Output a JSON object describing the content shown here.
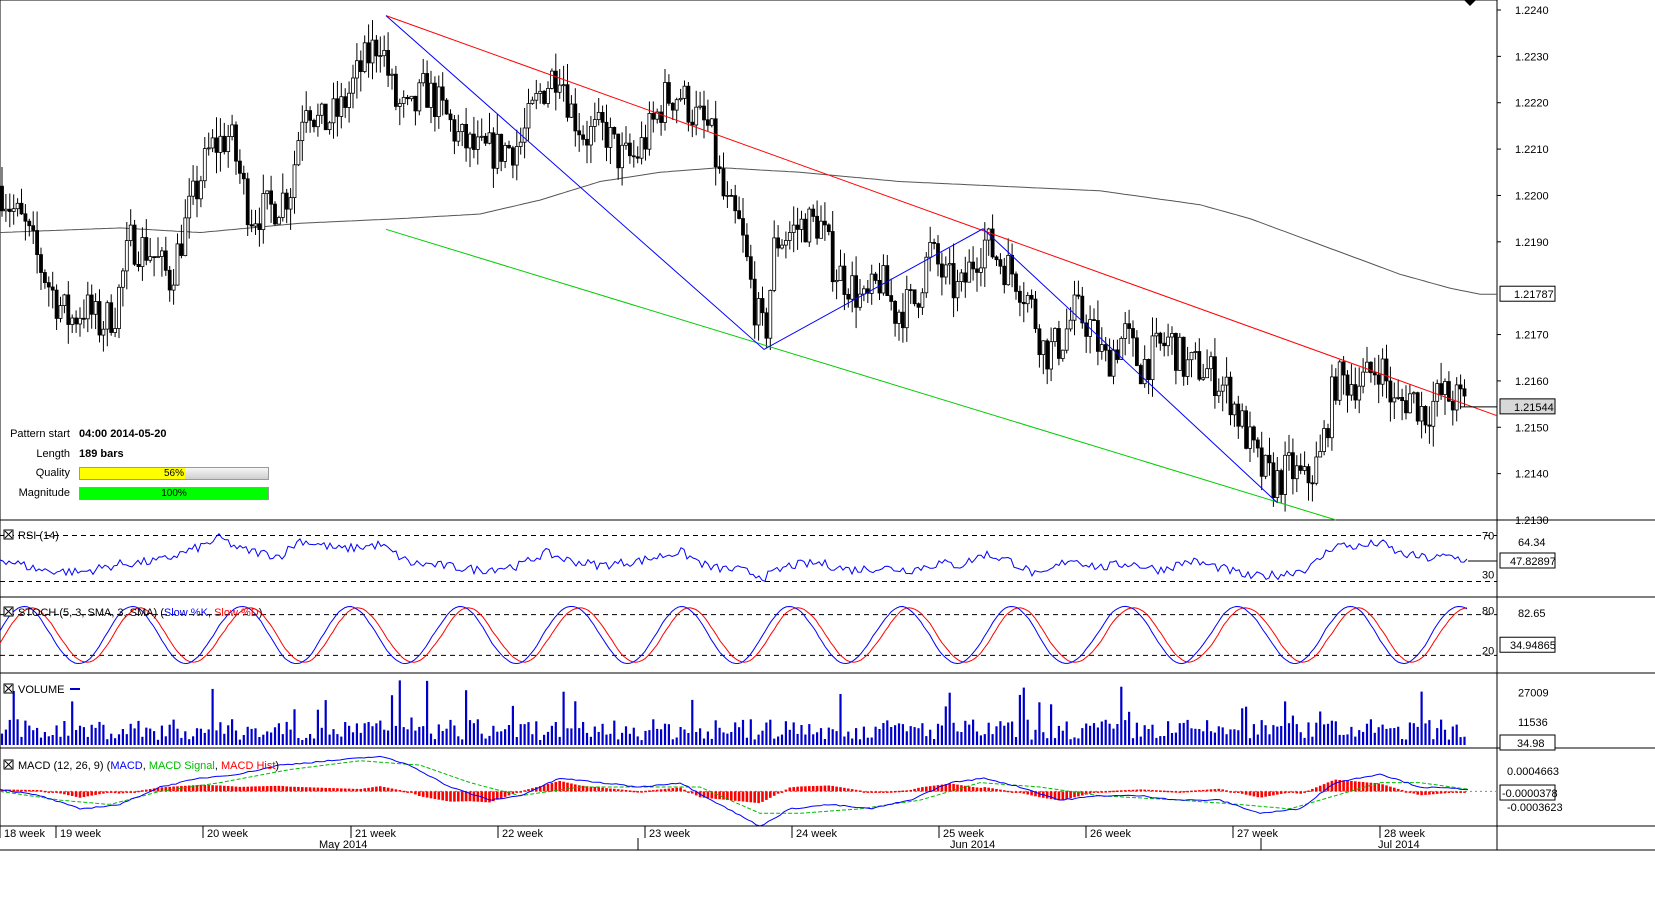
{
  "pattern_info": {
    "start_label": "Pattern start",
    "start_value": "04:00 2014-05-20",
    "length_label": "Length",
    "length_value": "189 bars",
    "quality_label": "Quality",
    "quality_text": "56%",
    "quality_pct": 56,
    "magnitude_label": "Magnitude",
    "magnitude_text": "100%",
    "magnitude_pct": 100
  },
  "colors": {
    "up_candle": "#ffffff",
    "down_candle": "#000000",
    "moving_average": "#555555",
    "resistance_line": "#ff0000",
    "support_line": "#00cc00",
    "zigzag": "#0000ff",
    "rsi": "#0000ff",
    "stoch_k": "#0000ff",
    "stoch_d": "#ff0000",
    "volume": "#0000cc",
    "macd": "#0000ff",
    "macd_signal": "#00bb00",
    "macd_hist": "#ff0000",
    "quality_bar": "#ffff00",
    "magnitude_bar": "#00ff00"
  },
  "chart_data": [
    {
      "type": "candlestick",
      "ylim": [
        1.213,
        1.224
      ],
      "y_ticks": [
        "1.2240",
        "1.2230",
        "1.2220",
        "1.2210",
        "1.2200",
        "1.2190",
        "1.2170",
        "1.2160",
        "1.2150",
        "1.2140"
      ],
      "current_price_label": "1.21544",
      "current_price": 1.21544,
      "ma_label": "1.21787",
      "ma_value": 1.21787,
      "price_path": [
        [
          0,
          1.2202
        ],
        [
          10,
          1.2198
        ],
        [
          25,
          1.2193
        ],
        [
          40,
          1.2185
        ],
        [
          55,
          1.2178
        ],
        [
          70,
          1.2173
        ],
        [
          85,
          1.2176
        ],
        [
          100,
          1.2172
        ],
        [
          115,
          1.2175
        ],
        [
          130,
          1.219
        ],
        [
          150,
          1.2188
        ],
        [
          170,
          1.2182
        ],
        [
          190,
          1.2197
        ],
        [
          210,
          1.221
        ],
        [
          230,
          1.2213
        ],
        [
          250,
          1.2196
        ],
        [
          270,
          1.2197
        ],
        [
          290,
          1.2201
        ],
        [
          305,
          1.2222
        ],
        [
          320,
          1.2215
        ],
        [
          340,
          1.2218
        ],
        [
          360,
          1.2227
        ],
        [
          380,
          1.2234
        ],
        [
          395,
          1.222
        ],
        [
          410,
          1.2217
        ],
        [
          425,
          1.2223
        ],
        [
          440,
          1.2219
        ],
        [
          460,
          1.2212
        ],
        [
          480,
          1.2209
        ],
        [
          500,
          1.221
        ],
        [
          520,
          1.2211
        ],
        [
          540,
          1.2222
        ],
        [
          560,
          1.2228
        ],
        [
          570,
          1.2219
        ],
        [
          585,
          1.2213
        ],
        [
          605,
          1.2214
        ],
        [
          620,
          1.2208
        ],
        [
          635,
          1.2208
        ],
        [
          650,
          1.2214
        ],
        [
          665,
          1.2221
        ],
        [
          680,
          1.2222
        ],
        [
          695,
          1.2217
        ],
        [
          710,
          1.2214
        ],
        [
          725,
          1.2198
        ],
        [
          740,
          1.2193
        ],
        [
          755,
          1.2176
        ],
        [
          765,
          1.2169
        ],
        [
          775,
          1.219
        ],
        [
          790,
          1.2192
        ],
        [
          805,
          1.2194
        ],
        [
          820,
          1.2194
        ],
        [
          835,
          1.2184
        ],
        [
          850,
          1.2181
        ],
        [
          865,
          1.2176
        ],
        [
          880,
          1.2182
        ],
        [
          895,
          1.2175
        ],
        [
          915,
          1.2177
        ],
        [
          930,
          1.2188
        ],
        [
          945,
          1.2182
        ],
        [
          960,
          1.2179
        ],
        [
          975,
          1.2187
        ],
        [
          985,
          1.219
        ],
        [
          1000,
          1.2186
        ],
        [
          1015,
          1.2183
        ],
        [
          1030,
          1.2177
        ],
        [
          1045,
          1.2166
        ],
        [
          1060,
          1.2168
        ],
        [
          1075,
          1.2175
        ],
        [
          1090,
          1.2172
        ],
        [
          1105,
          1.2164
        ],
        [
          1125,
          1.217
        ],
        [
          1140,
          1.2163
        ],
        [
          1155,
          1.2166
        ],
        [
          1170,
          1.2169
        ],
        [
          1185,
          1.2163
        ],
        [
          1200,
          1.2163
        ],
        [
          1215,
          1.2161
        ],
        [
          1230,
          1.2157
        ],
        [
          1245,
          1.2149
        ],
        [
          1260,
          1.2141
        ],
        [
          1275,
          1.2138
        ],
        [
          1290,
          1.2141
        ],
        [
          1305,
          1.2138
        ],
        [
          1320,
          1.2143
        ],
        [
          1335,
          1.216
        ],
        [
          1350,
          1.216
        ],
        [
          1365,
          1.216
        ],
        [
          1380,
          1.2164
        ],
        [
          1395,
          1.2154
        ],
        [
          1410,
          1.2157
        ],
        [
          1425,
          1.2153
        ],
        [
          1440,
          1.2157
        ],
        [
          1455,
          1.2156
        ],
        [
          1468,
          1.2155
        ]
      ],
      "ma_path": [
        [
          0,
          1.2192
        ],
        [
          120,
          1.2193
        ],
        [
          200,
          1.2192
        ],
        [
          300,
          1.2194
        ],
        [
          400,
          1.2195
        ],
        [
          480,
          1.2196
        ],
        [
          540,
          1.2199
        ],
        [
          600,
          1.2203
        ],
        [
          660,
          1.2205
        ],
        [
          720,
          1.2206
        ],
        [
          800,
          1.2205
        ],
        [
          900,
          1.2203
        ],
        [
          1000,
          1.2202
        ],
        [
          1100,
          1.2201
        ],
        [
          1200,
          1.2198
        ],
        [
          1250,
          1.2195
        ],
        [
          1300,
          1.2191
        ],
        [
          1350,
          1.2187
        ],
        [
          1400,
          1.2183
        ],
        [
          1450,
          1.218
        ],
        [
          1480,
          1.21787
        ]
      ],
      "resistance_line": [
        [
          386,
          1.22388
        ],
        [
          1497,
          1.21525
        ]
      ],
      "support_line": [
        [
          386,
          1.21927
        ],
        [
          1336,
          1.213
        ]
      ],
      "zigzag": [
        [
          386,
          1.22388
        ],
        [
          764,
          1.21668
        ],
        [
          983,
          1.21928
        ],
        [
          1277,
          1.21338
        ]
      ]
    },
    {
      "type": "line",
      "panel_title": "RSI (14)",
      "ylim": [
        20,
        80
      ],
      "level_labels": [
        "70",
        "30"
      ],
      "levels": [
        70,
        30
      ],
      "tick_label": "64.34",
      "tick_value": 64.34,
      "current_label": "47.82897",
      "current_value": 47.82897,
      "series": [
        [
          0,
          50
        ],
        [
          40,
          40
        ],
        [
          80,
          38
        ],
        [
          120,
          45
        ],
        [
          160,
          48
        ],
        [
          200,
          60
        ],
        [
          220,
          68
        ],
        [
          240,
          58
        ],
        [
          280,
          52
        ],
        [
          300,
          66
        ],
        [
          340,
          58
        ],
        [
          380,
          62
        ],
        [
          410,
          46
        ],
        [
          440,
          44
        ],
        [
          480,
          40
        ],
        [
          520,
          44
        ],
        [
          545,
          55
        ],
        [
          570,
          48
        ],
        [
          600,
          44
        ],
        [
          640,
          48
        ],
        [
          680,
          56
        ],
        [
          710,
          42
        ],
        [
          740,
          40
        ],
        [
          765,
          34
        ],
        [
          790,
          44
        ],
        [
          820,
          46
        ],
        [
          850,
          40
        ],
        [
          880,
          42
        ],
        [
          910,
          40
        ],
        [
          940,
          46
        ],
        [
          960,
          44
        ],
        [
          985,
          54
        ],
        [
          1010,
          48
        ],
        [
          1040,
          34
        ],
        [
          1070,
          50
        ],
        [
          1100,
          42
        ],
        [
          1130,
          46
        ],
        [
          1160,
          40
        ],
        [
          1190,
          48
        ],
        [
          1220,
          42
        ],
        [
          1250,
          34
        ],
        [
          1280,
          36
        ],
        [
          1310,
          42
        ],
        [
          1335,
          62
        ],
        [
          1360,
          60
        ],
        [
          1380,
          64
        ],
        [
          1400,
          54
        ],
        [
          1430,
          50
        ],
        [
          1450,
          52
        ],
        [
          1468,
          48
        ]
      ]
    },
    {
      "type": "line",
      "panel_title": "STOCH (5, 3, SMA, 3, SMA)",
      "legend_k": "Slow %K",
      "legend_d": "Slow %D",
      "ylim": [
        0,
        100
      ],
      "level_labels": [
        "80",
        "20"
      ],
      "levels": [
        80,
        20
      ],
      "tick_label": "82.65",
      "tick_value": 82.65,
      "current_label": "34.94865",
      "current_value": 34.94865
    },
    {
      "type": "bar",
      "panel_title": "VOLUME",
      "ylim": [
        0,
        35000
      ],
      "tick_labels": [
        "27009",
        "11536"
      ],
      "tick_values": [
        27009,
        11536
      ],
      "current_label": "34.98"
    },
    {
      "type": "line",
      "panel_title": "MACD (12, 26, 9)",
      "legend_macd": "MACD",
      "legend_signal": "MACD Signal",
      "legend_hist": "MACD Hist",
      "ylim": [
        -0.0007,
        0.0009
      ],
      "tick_labels": [
        "0.0004663",
        "-0.0003623"
      ],
      "tick_values": [
        0.0004663,
        -0.0003623
      ],
      "current_label": "-0.0000378",
      "current_value": -3.78e-05,
      "macd_path": [
        [
          0,
          5e-05
        ],
        [
          40,
          -0.0001
        ],
        [
          80,
          -0.0004
        ],
        [
          120,
          -0.0003
        ],
        [
          160,
          0.0001
        ],
        [
          200,
          0.0003
        ],
        [
          240,
          0.0004
        ],
        [
          280,
          0.0006
        ],
        [
          330,
          0.0007
        ],
        [
          380,
          0.0008
        ],
        [
          410,
          0.0006
        ],
        [
          450,
          0.0001
        ],
        [
          490,
          -0.0002
        ],
        [
          520,
          -0.0001
        ],
        [
          560,
          0.0003
        ],
        [
          600,
          0.0002
        ],
        [
          640,
          0.0001
        ],
        [
          680,
          0.0002
        ],
        [
          720,
          -0.0003
        ],
        [
          760,
          -0.0008
        ],
        [
          790,
          -0.0004
        ],
        [
          830,
          -0.0003
        ],
        [
          870,
          -0.0004
        ],
        [
          910,
          -0.0002
        ],
        [
          950,
          0.0002
        ],
        [
          985,
          0.0003
        ],
        [
          1020,
          0.0001
        ],
        [
          1060,
          -0.0002
        ],
        [
          1100,
          -0.0001
        ],
        [
          1140,
          -0.0001
        ],
        [
          1180,
          -0.0002
        ],
        [
          1220,
          -0.0002
        ],
        [
          1260,
          -0.0005
        ],
        [
          1300,
          -0.0004
        ],
        [
          1335,
          0.0002
        ],
        [
          1380,
          0.0004
        ],
        [
          1420,
          0.0001
        ],
        [
          1468,
          5e-05
        ]
      ],
      "signal_path": [
        [
          0,
          0.0
        ],
        [
          60,
          -0.0002
        ],
        [
          110,
          -0.0003
        ],
        [
          160,
          0.0
        ],
        [
          220,
          0.0002
        ],
        [
          290,
          0.0005
        ],
        [
          360,
          0.0007
        ],
        [
          420,
          0.0006
        ],
        [
          470,
          0.0002
        ],
        [
          520,
          -0.0001
        ],
        [
          580,
          0.0001
        ],
        [
          640,
          0.0001
        ],
        [
          700,
          0.0001
        ],
        [
          760,
          -0.0005
        ],
        [
          800,
          -0.0005
        ],
        [
          860,
          -0.0004
        ],
        [
          920,
          -0.0002
        ],
        [
          980,
          0.0002
        ],
        [
          1040,
          0.0001
        ],
        [
          1100,
          -0.0001
        ],
        [
          1180,
          -0.0002
        ],
        [
          1240,
          -0.0003
        ],
        [
          1290,
          -0.0004
        ],
        [
          1335,
          -0.0001
        ],
        [
          1380,
          0.0002
        ],
        [
          1420,
          0.0002
        ],
        [
          1468,
          5e-05
        ]
      ]
    }
  ],
  "x_axis": {
    "week_labels": [
      {
        "text": "18 week",
        "x": 4
      },
      {
        "text": "19 week",
        "x": 60
      },
      {
        "text": "20 week",
        "x": 207
      },
      {
        "text": "21 week",
        "x": 355
      },
      {
        "text": "22 week",
        "x": 502
      },
      {
        "text": "23 week",
        "x": 649
      },
      {
        "text": "24 week",
        "x": 796
      },
      {
        "text": "25 week",
        "x": 943
      },
      {
        "text": "26 week",
        "x": 1090
      },
      {
        "text": "27 week",
        "x": 1237
      },
      {
        "text": "28 week",
        "x": 1384
      }
    ],
    "month_labels": [
      {
        "text": "May 2014",
        "x": 319
      },
      {
        "text": "Jun 2014",
        "x": 950
      },
      {
        "text": "Jul 2014",
        "x": 1378
      }
    ]
  }
}
